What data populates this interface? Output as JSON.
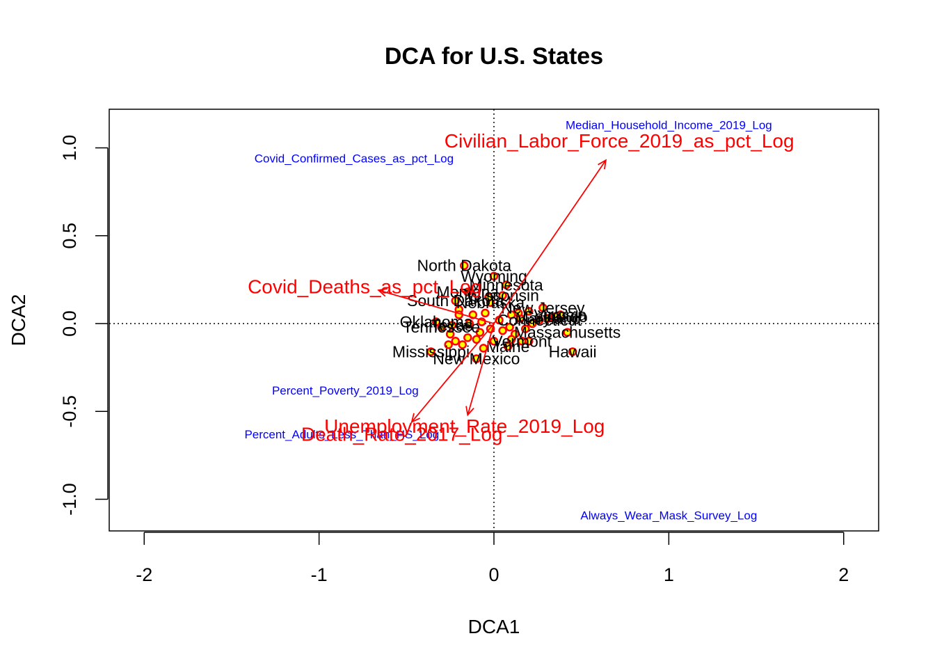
{
  "chart_data": {
    "type": "scatter",
    "title": "DCA for U.S. States",
    "xlabel": "DCA1",
    "ylabel": "DCA2",
    "xlim": [
      -2.2,
      2.2
    ],
    "ylim": [
      -1.18,
      1.22
    ],
    "x_ticks": [
      -2,
      -1,
      0,
      1,
      2
    ],
    "y_ticks": [
      -1.0,
      -0.5,
      0.0,
      0.5,
      1.0
    ],
    "x_tick_labels": [
      "-2",
      "-1",
      "0",
      "1",
      "2"
    ],
    "y_tick_labels": [
      "-1.0",
      "-0.5",
      "0.0",
      "0.5",
      "1.0"
    ],
    "reference_lines": {
      "x": 0,
      "y": 0,
      "style": "dotted"
    },
    "grid": false,
    "colors": {
      "points_fill": "#ffff00",
      "points_stroke": "#ff0000",
      "arrows": "#ff0000",
      "species": "#0000ff",
      "sites": "#000000"
    },
    "sites": [
      {
        "label": "North Dakota",
        "x": -0.17,
        "y": 0.33
      },
      {
        "label": "Wyoming",
        "x": 0.0,
        "y": 0.27
      },
      {
        "label": "Minnesota",
        "x": 0.07,
        "y": 0.22
      },
      {
        "label": "Montana",
        "x": -0.15,
        "y": 0.18
      },
      {
        "label": "Wisconsin",
        "x": 0.05,
        "y": 0.16
      },
      {
        "label": "South Dakota",
        "x": -0.22,
        "y": 0.13
      },
      {
        "label": "Nebraska",
        "x": -0.02,
        "y": 0.12
      },
      {
        "label": "New Jersey",
        "x": 0.28,
        "y": 0.09
      },
      {
        "label": "Virginia",
        "x": 0.38,
        "y": 0.05
      },
      {
        "label": "Colorado",
        "x": 0.35,
        "y": 0.04
      },
      {
        "label": "Maryland",
        "x": 0.31,
        "y": 0.03
      },
      {
        "label": "Connecticut",
        "x": 0.26,
        "y": 0.02
      },
      {
        "label": "Oklahoma",
        "x": -0.33,
        "y": 0.01
      },
      {
        "label": "Texas",
        "x": -0.24,
        "y": -0.01
      },
      {
        "label": "Tennessee",
        "x": -0.3,
        "y": -0.02
      },
      {
        "label": "Massachusetts",
        "x": 0.42,
        "y": -0.05
      },
      {
        "label": "Vermont",
        "x": 0.16,
        "y": -0.1
      },
      {
        "label": "Maine",
        "x": 0.08,
        "y": -0.13
      },
      {
        "label": "Hawaii",
        "x": 0.45,
        "y": -0.16
      },
      {
        "label": "Mississippi",
        "x": -0.36,
        "y": -0.16
      },
      {
        "label": "New Mexico",
        "x": -0.1,
        "y": -0.2
      }
    ],
    "extra_points": [
      {
        "x": -0.2,
        "y": 0.08
      },
      {
        "x": -0.12,
        "y": 0.05
      },
      {
        "x": -0.05,
        "y": 0.06
      },
      {
        "x": 0.1,
        "y": 0.05
      },
      {
        "x": 0.15,
        "y": 0.03
      },
      {
        "x": 0.2,
        "y": 0.07
      },
      {
        "x": 0.22,
        "y": 0.0
      },
      {
        "x": 0.18,
        "y": -0.03
      },
      {
        "x": 0.12,
        "y": -0.06
      },
      {
        "x": 0.05,
        "y": -0.04
      },
      {
        "x": -0.02,
        "y": -0.03
      },
      {
        "x": -0.08,
        "y": -0.05
      },
      {
        "x": -0.15,
        "y": -0.08
      },
      {
        "x": -0.22,
        "y": -0.1
      },
      {
        "x": -0.18,
        "y": -0.12
      },
      {
        "x": -0.1,
        "y": -0.09
      },
      {
        "x": 0.0,
        "y": -0.1
      },
      {
        "x": 0.1,
        "y": -0.09
      },
      {
        "x": -0.25,
        "y": -0.06
      },
      {
        "x": -0.07,
        "y": 0.01
      },
      {
        "x": 0.03,
        "y": 0.02
      },
      {
        "x": -0.14,
        "y": 0.0
      },
      {
        "x": 0.2,
        "y": -0.1
      },
      {
        "x": -0.03,
        "y": 0.15
      },
      {
        "x": -0.2,
        "y": 0.05
      },
      {
        "x": 0.09,
        "y": -0.02
      },
      {
        "x": -0.26,
        "y": -0.12
      },
      {
        "x": 0.14,
        "y": 0.06
      },
      {
        "x": -0.06,
        "y": -0.14
      }
    ],
    "env_vectors": [
      {
        "label": "Civilian_Labor_Force_2019_as_pct_Log",
        "x": 0.64,
        "y": 0.93
      },
      {
        "label": "Covid_Deaths_as_pct_Log",
        "x": -0.66,
        "y": 0.19
      },
      {
        "label": "Unemployment_Rate_2019_Log",
        "x": -0.15,
        "y": -0.52
      },
      {
        "label": "Death_Rate_2017_Log",
        "x": -0.47,
        "y": -0.56
      }
    ],
    "species": [
      {
        "label": "Median_Household_Income_2019_Log",
        "x": 1.0,
        "y": 1.13
      },
      {
        "label": "Covid_Confirmed_Cases_as_pct_Log",
        "x": -0.8,
        "y": 0.94
      },
      {
        "label": "Percent_Poverty_2019_Log",
        "x": -0.85,
        "y": -0.38
      },
      {
        "label": "Percent_Adults_Less_Than_HS_Log",
        "x": -0.87,
        "y": -0.63
      },
      {
        "label": "Always_Wear_Mask_Survey_Log",
        "x": 1.0,
        "y": -1.09
      }
    ]
  }
}
